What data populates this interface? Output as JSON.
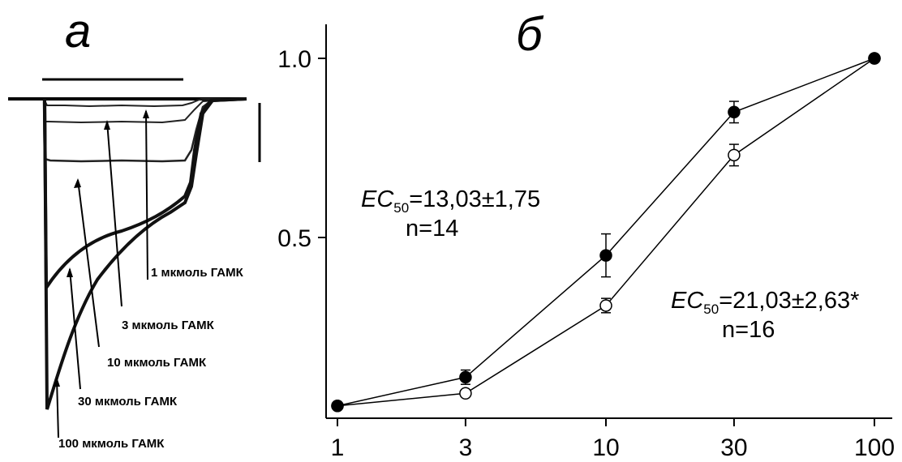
{
  "panel_a": {
    "letter": "а",
    "traces": [
      {
        "label": "1 мкмоль ГАМК"
      },
      {
        "label": "3 мкмоль ГАМК"
      },
      {
        "label": "10 мкмоль ГАМК"
      },
      {
        "label": "30 мкмоль ГАМК"
      },
      {
        "label": "100 мкмоль ГАМК"
      }
    ]
  },
  "panel_b": {
    "letter": "б",
    "annotation_filled": {
      "ec_prefix": "EC",
      "ec_sub": "50",
      "ec_value": "=13,03±1,75",
      "n": "n=14"
    },
    "annotation_open": {
      "ec_prefix": "EC",
      "ec_sub": "50",
      "ec_value": "=21,03±2,63*",
      "n": "n=16"
    }
  },
  "chart_data": {
    "type": "line",
    "x_scale": "log",
    "x_ticks": [
      1,
      3,
      10,
      30,
      100
    ],
    "x_tick_labels": [
      "1",
      "3",
      "10",
      "30",
      "100"
    ],
    "y_ticks": [
      0.5,
      1.0
    ],
    "y_tick_labels": [
      "0.5",
      "1.0"
    ],
    "xlim": [
      1,
      100
    ],
    "ylim": [
      0,
      1.05
    ],
    "grid": false,
    "series": [
      {
        "marker": "filled-circle",
        "x": [
          1,
          3,
          10,
          30,
          100
        ],
        "y": [
          0.03,
          0.11,
          0.45,
          0.85,
          1.0
        ],
        "err": [
          0,
          0.02,
          0.06,
          0.03,
          0
        ]
      },
      {
        "marker": "open-circle",
        "x": [
          1,
          3,
          10,
          30,
          100
        ],
        "y": [
          0.03,
          0.065,
          0.31,
          0.73,
          1.0
        ],
        "err": [
          0,
          0,
          0.02,
          0.03,
          0
        ]
      }
    ]
  }
}
